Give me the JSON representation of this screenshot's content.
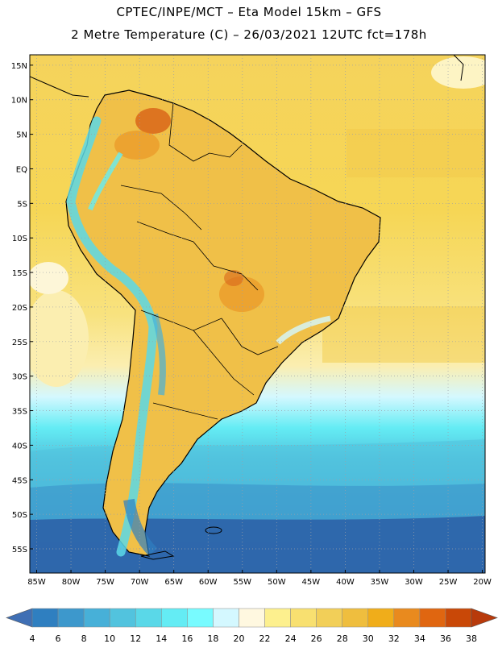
{
  "header": {
    "title_line1": "CPTEC/INPE/MCT –  Eta Model 15km – GFS",
    "title_line2": "2 Metre Temperature (C) – 26/03/2021 12UTC fct=178h"
  },
  "map": {
    "lon_range": [
      -86,
      -19.6
    ],
    "lat_range": [
      -58.5,
      16.5
    ],
    "lat_labels": [
      "15N",
      "10N",
      "5N",
      "EQ",
      "5S",
      "10S",
      "15S",
      "20S",
      "25S",
      "30S",
      "35S",
      "40S",
      "45S",
      "50S",
      "55S"
    ],
    "lat_values": [
      15,
      10,
      5,
      0,
      -5,
      -10,
      -15,
      -20,
      -25,
      -30,
      -35,
      -40,
      -45,
      -50,
      -55
    ],
    "lon_labels": [
      "85W",
      "80W",
      "75W",
      "70W",
      "65W",
      "60W",
      "55W",
      "50W",
      "45W",
      "40W",
      "35W",
      "30W",
      "25W",
      "20W"
    ],
    "lon_values": [
      -85,
      -80,
      -75,
      -70,
      -65,
      -60,
      -55,
      -50,
      -45,
      -40,
      -35,
      -30,
      -25,
      -20
    ]
  },
  "colorbar": {
    "labels": [
      "4",
      "6",
      "8",
      "10",
      "12",
      "14",
      "16",
      "18",
      "20",
      "22",
      "24",
      "26",
      "28",
      "30",
      "32",
      "34",
      "36",
      "38"
    ],
    "low_extension_color": "#3f6fb4",
    "high_extension_color": "#b83a0b",
    "colors": [
      "#2c5ea6",
      "#2f7fc0",
      "#3d98cc",
      "#47b0d8",
      "#52c3de",
      "#5ad8e8",
      "#64ecf4",
      "#78fbff",
      "#d4f8ff",
      "#fff8e0",
      "#fdf08e",
      "#f8e070",
      "#f2cf58",
      "#efbe3e",
      "#f0ad1a",
      "#e98a1e",
      "#e06610",
      "#c94807",
      "#b83a0b"
    ]
  },
  "colors": {
    "ocean_warm": "#f6d455",
    "land_base": "#f0c048",
    "coast_line": "#000000",
    "grid_line": "#9aa0a8"
  }
}
